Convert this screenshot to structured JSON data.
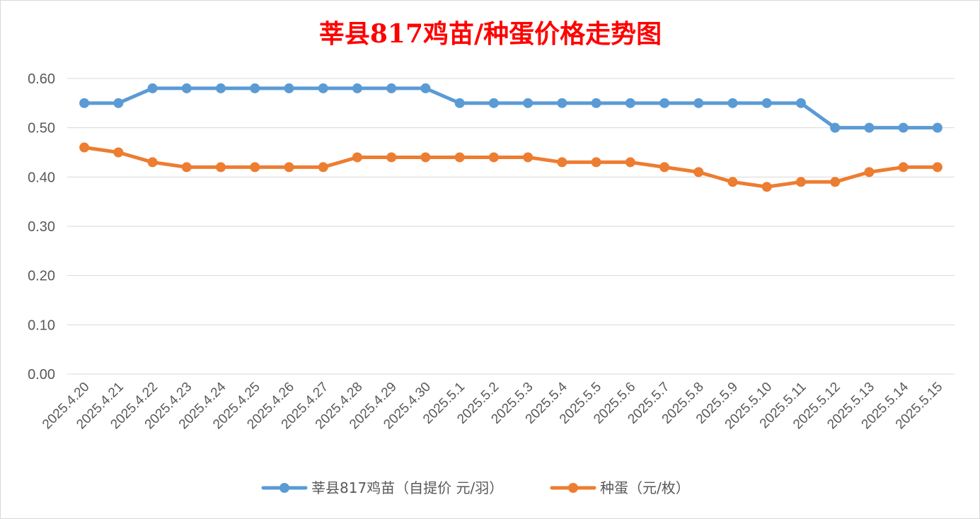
{
  "chart_data": {
    "type": "line",
    "title": "莘县817鸡苗/种蛋价格走势图",
    "categories": [
      "2025.4.20",
      "2025.4.21",
      "2025.4.22",
      "2025.4.23",
      "2025.4.24",
      "2025.4.25",
      "2025.4.26",
      "2025.4.27",
      "2025.4.28",
      "2025.4.29",
      "2025.4.30",
      "2025.5.1",
      "2025.5.2",
      "2025.5.3",
      "2025.5.4",
      "2025.5.5",
      "2025.5.6",
      "2025.5.7",
      "2025.5.8",
      "2025.5.9",
      "2025.5.10",
      "2025.5.11",
      "2025.5.12",
      "2025.5.13",
      "2025.5.14",
      "2025.5.15"
    ],
    "series": [
      {
        "name": "莘县817鸡苗（自提价 元/羽）",
        "color": "#5b9bd5",
        "values": [
          0.55,
          0.55,
          0.58,
          0.58,
          0.58,
          0.58,
          0.58,
          0.58,
          0.58,
          0.58,
          0.58,
          0.55,
          0.55,
          0.55,
          0.55,
          0.55,
          0.55,
          0.55,
          0.55,
          0.55,
          0.55,
          0.55,
          0.5,
          0.5,
          0.5,
          0.5
        ]
      },
      {
        "name": "种蛋（元/枚）",
        "color": "#ed7d31",
        "values": [
          0.46,
          0.45,
          0.43,
          0.42,
          0.42,
          0.42,
          0.42,
          0.42,
          0.44,
          0.44,
          0.44,
          0.44,
          0.44,
          0.44,
          0.43,
          0.43,
          0.43,
          0.42,
          0.41,
          0.39,
          0.38,
          0.39,
          0.39,
          0.41,
          0.42,
          0.42
        ]
      }
    ],
    "yticks": [
      "0.00",
      "0.10",
      "0.20",
      "0.30",
      "0.40",
      "0.50",
      "0.60"
    ],
    "ylim": [
      0,
      0.6
    ],
    "grid": true,
    "legend_position": "bottom"
  }
}
